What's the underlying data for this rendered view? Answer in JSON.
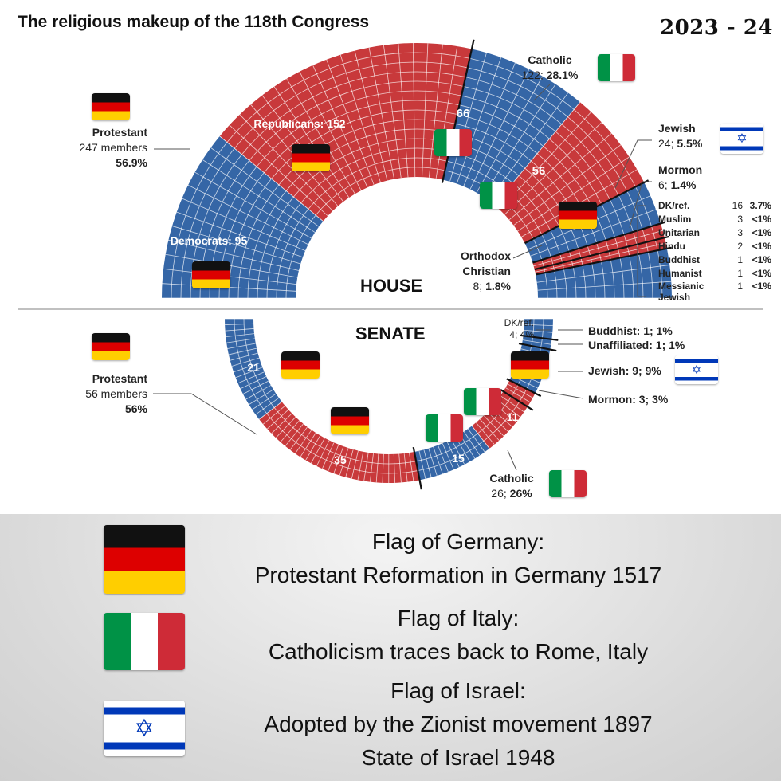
{
  "title": "The religious makeup of the 118th Congress",
  "years": "2023 - 24",
  "colors": {
    "protestant": "#c8393b",
    "democrat_blue": "#3566a6",
    "grid_line": "#ffffff"
  },
  "chart_data": [
    {
      "type": "parliament",
      "name": "HOUSE",
      "groups": [
        {
          "label": "Democrats: 95",
          "religion": "Protestant",
          "party": "Democrat",
          "value": 95
        },
        {
          "label": "Republicans: 152",
          "religion": "Protestant",
          "party": "Republican",
          "value": 152
        },
        {
          "label": "66",
          "religion": "Catholic",
          "party": "Democrat",
          "value": 66
        },
        {
          "label": "56",
          "religion": "Catholic",
          "party": "Republican",
          "value": 56
        },
        {
          "religion": "Jewish",
          "value": 24
        },
        {
          "religion": "Orthodox Christian",
          "value": 8
        },
        {
          "religion": "Mormon",
          "value": 6
        },
        {
          "religion": "DK/ref.",
          "value": 16
        },
        {
          "religion": "Muslim",
          "value": 3
        },
        {
          "religion": "Unitarian",
          "value": 3
        },
        {
          "religion": "Hindu",
          "value": 2
        },
        {
          "religion": "Buddhist",
          "value": 1
        },
        {
          "religion": "Humanist",
          "value": 1
        },
        {
          "religion": "Messianic Jewish",
          "value": 1
        }
      ]
    },
    {
      "type": "parliament",
      "name": "SENATE",
      "groups": [
        {
          "label": "21",
          "religion": "Protestant",
          "party": "Democrat",
          "value": 21
        },
        {
          "label": "35",
          "religion": "Protestant",
          "party": "Republican",
          "value": 35
        },
        {
          "label": "15",
          "religion": "Catholic",
          "party": "Democrat",
          "value": 15
        },
        {
          "label": "11",
          "religion": "Catholic",
          "party": "Republican",
          "value": 11
        },
        {
          "religion": "Mormon",
          "value": 3
        },
        {
          "religion": "Jewish",
          "value": 9
        },
        {
          "religion": "Unaffiliated",
          "value": 1
        },
        {
          "religion": "Buddhist",
          "value": 1
        },
        {
          "religion": "DK/ref.",
          "value": 4
        }
      ]
    }
  ],
  "house": {
    "section": "HOUSE",
    "protestant": {
      "name": "Protestant",
      "members": "247 members",
      "pct": "56.9%"
    },
    "catholic": {
      "name": "Catholic",
      "stat": "122;",
      "pct": "28.1%"
    },
    "jewish": {
      "name": "Jewish",
      "stat": "24;",
      "pct": "5.5%"
    },
    "mormon": {
      "name": "Mormon",
      "stat": "6;",
      "pct": "1.4%"
    },
    "orthodox": {
      "name1": "Orthodox",
      "name2": "Christian",
      "stat": "8;",
      "pct": "1.8%"
    },
    "dem_label": "Democrats: 95",
    "rep_label": "Republicans: 152",
    "cat_dem": "66",
    "cat_rep": "56",
    "others": [
      {
        "name": "DK/ref.",
        "count": "16",
        "pct": "3.7%"
      },
      {
        "name": "Muslim",
        "count": "3",
        "pct": "<1%"
      },
      {
        "name": "Unitarian",
        "count": "3",
        "pct": "<1%"
      },
      {
        "name": "Hindu",
        "count": "2",
        "pct": "<1%"
      },
      {
        "name": "Buddhist",
        "count": "1",
        "pct": "<1%"
      },
      {
        "name": "Humanist",
        "count": "1",
        "pct": "<1%"
      },
      {
        "name": "Messianic",
        "name2": "Jewish",
        "count": "1",
        "pct": "<1%"
      }
    ]
  },
  "senate": {
    "section": "SENATE",
    "protestant": {
      "name": "Protestant",
      "members": "56 members",
      "pct": "56%"
    },
    "catholic": {
      "name": "Catholic",
      "stat": "26;",
      "pct": "26%"
    },
    "dkref": {
      "line1": "DK/ref.",
      "line2": "4; 4%"
    },
    "buddhist": "Buddhist: 1; 1%",
    "unaffiliated": "Unaffiliated: 1; 1%",
    "jewish": "Jewish: 9; 9%",
    "mormon": "Mormon: 3; 3%",
    "arc_labels": {
      "dem_prot": "21",
      "rep_prot": "35",
      "dem_cat": "15",
      "rep_cat": "11"
    }
  },
  "legend": [
    {
      "flag": "germany-flag",
      "line1": "Flag of Germany:",
      "line2": "Protestant Reformation in Germany 1517"
    },
    {
      "flag": "italy-flag",
      "line1": "Flag of Italy:",
      "line2": "Catholicism traces back to Rome, Italy"
    },
    {
      "flag": "israel-flag",
      "line1": "Flag of Israel:",
      "line2": "Adopted by the Zionist movement 1897",
      "line3": "State of Israel 1948"
    }
  ]
}
